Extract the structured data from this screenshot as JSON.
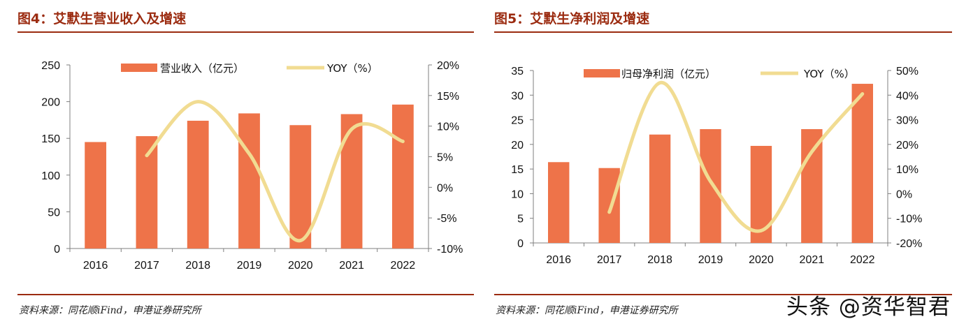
{
  "colors": {
    "bar": "#ee7349",
    "line": "#f1dc92",
    "title": "#9b2b10",
    "axis": "#7f7f7f"
  },
  "watermark": "头条 @资华智君",
  "charts": [
    {
      "title": "图4：艾默生营业收入及增速",
      "source": "资料来源：同花顺iFind，申港证券研究所",
      "legend_bar": "营业收入（亿元）",
      "legend_line": "YOY（%）",
      "left_ticks": [
        "250",
        "200",
        "150",
        "100",
        "50",
        "0"
      ],
      "right_ticks": [
        "20%",
        "15%",
        "10%",
        "5%",
        "0%",
        "-5%",
        "-10%"
      ]
    },
    {
      "title": "图5：艾默生净利润及增速",
      "source": "资料来源：同花顺iFind，申港证券研究所",
      "legend_bar": "归母净利润（亿元）",
      "legend_line": "YOY（%）",
      "left_ticks": [
        "35",
        "30",
        "25",
        "20",
        "15",
        "10",
        "5",
        "0"
      ],
      "right_ticks": [
        "50%",
        "40%",
        "30%",
        "20%",
        "10%",
        "0%",
        "-10%",
        "-20%"
      ]
    }
  ],
  "chart_data": [
    {
      "type": "bar+line",
      "title": "图4：艾默生营业收入及增速",
      "categories": [
        "2016",
        "2017",
        "2018",
        "2019",
        "2020",
        "2021",
        "2022"
      ],
      "series": [
        {
          "name": "营业收入（亿元）",
          "axis": "left",
          "kind": "bar",
          "values": [
            145,
            153,
            174,
            184,
            168,
            183,
            196
          ]
        },
        {
          "name": "YOY（%）",
          "axis": "right",
          "kind": "line",
          "values": [
            null,
            5.2,
            14,
            5.5,
            -8.7,
            9.5,
            7.5
          ]
        }
      ],
      "ylim_left": [
        0,
        250
      ],
      "ylim_right": [
        -10,
        20
      ],
      "legend": "top"
    },
    {
      "type": "bar+line",
      "title": "图5：艾默生净利润及增速",
      "categories": [
        "2016",
        "2017",
        "2018",
        "2019",
        "2020",
        "2021",
        "2022"
      ],
      "series": [
        {
          "name": "归母净利润（亿元）",
          "axis": "left",
          "kind": "bar",
          "values": [
            16.4,
            15.2,
            22.0,
            23.1,
            19.7,
            23.1,
            32.3
          ]
        },
        {
          "name": "YOY（%）",
          "axis": "right",
          "kind": "line",
          "values": [
            null,
            -7.5,
            45.0,
            5.0,
            -15.0,
            17.0,
            40.5
          ]
        }
      ],
      "ylim_left": [
        0,
        35
      ],
      "ylim_right": [
        -20,
        50
      ],
      "legend": "top"
    }
  ]
}
